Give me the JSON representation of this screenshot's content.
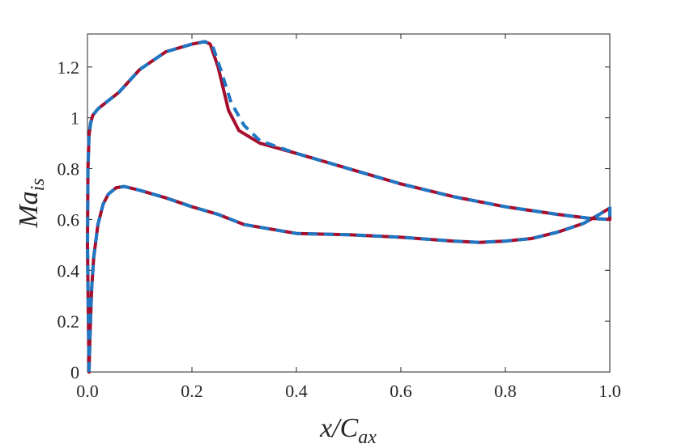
{
  "chart_data": {
    "type": "line",
    "xlabel": {
      "main": "x/C",
      "sub": "ax"
    },
    "ylabel": {
      "main": "Ma",
      "sub": "is"
    },
    "xlim": [
      0,
      1
    ],
    "ylim": [
      0,
      1.33
    ],
    "xticks": [
      0,
      0.2,
      0.4,
      0.6,
      0.8,
      1
    ],
    "xtick_labels": [
      "0.0",
      "0.2",
      "0.4",
      "0.6",
      "0.8",
      "1.0"
    ],
    "yticks": [
      0,
      0.2,
      0.4,
      0.6,
      0.8,
      1,
      1.2
    ],
    "ytick_labels": [
      "0",
      "0.2",
      "0.4",
      "0.6",
      "0.8",
      "1",
      "1.2"
    ],
    "grid": false,
    "box": true,
    "series": [
      {
        "color": "#a50f2d",
        "dash": "solid",
        "x": [
          0.003,
          0.0,
          0.001,
          0.003,
          0.006,
          0.01,
          0.02,
          0.035,
          0.06,
          0.1,
          0.15,
          0.2,
          0.225,
          0.235,
          0.25,
          0.27,
          0.29,
          0.33,
          0.4,
          0.5,
          0.6,
          0.7,
          0.8,
          0.9,
          0.96,
          1.0,
          1.0,
          1.0,
          0.98,
          0.95,
          0.9,
          0.85,
          0.8,
          0.75,
          0.7,
          0.6,
          0.5,
          0.4,
          0.3,
          0.25,
          0.2,
          0.15,
          0.1,
          0.07,
          0.055,
          0.04,
          0.03,
          0.02,
          0.012,
          0.008,
          0.005,
          0.003
        ],
        "y": [
          0.0,
          0.5,
          0.8,
          0.93,
          0.98,
          1.01,
          1.035,
          1.06,
          1.1,
          1.19,
          1.26,
          1.29,
          1.3,
          1.29,
          1.2,
          1.03,
          0.95,
          0.9,
          0.86,
          0.8,
          0.74,
          0.69,
          0.65,
          0.62,
          0.605,
          0.6,
          0.625,
          0.645,
          0.62,
          0.585,
          0.55,
          0.525,
          0.515,
          0.51,
          0.515,
          0.53,
          0.54,
          0.545,
          0.58,
          0.62,
          0.65,
          0.685,
          0.715,
          0.73,
          0.725,
          0.7,
          0.66,
          0.58,
          0.45,
          0.33,
          0.15,
          0.0
        ]
      },
      {
        "color": "#1f77c4",
        "dash": "dashed",
        "x": [
          0.003,
          0.0,
          0.001,
          0.003,
          0.006,
          0.01,
          0.02,
          0.035,
          0.06,
          0.1,
          0.15,
          0.2,
          0.225,
          0.24,
          0.255,
          0.275,
          0.3,
          0.33,
          0.4,
          0.5,
          0.6,
          0.7,
          0.8,
          0.9,
          0.96,
          1.0,
          1.0,
          1.0,
          0.98,
          0.95,
          0.9,
          0.85,
          0.8,
          0.75,
          0.7,
          0.6,
          0.5,
          0.4,
          0.3,
          0.25,
          0.2,
          0.15,
          0.1,
          0.07,
          0.055,
          0.04,
          0.03,
          0.02,
          0.012,
          0.008,
          0.005,
          0.003
        ],
        "y": [
          0.0,
          0.5,
          0.8,
          0.93,
          0.98,
          1.01,
          1.035,
          1.06,
          1.1,
          1.19,
          1.26,
          1.29,
          1.3,
          1.28,
          1.19,
          1.06,
          0.97,
          0.91,
          0.86,
          0.8,
          0.74,
          0.69,
          0.65,
          0.62,
          0.605,
          0.6,
          0.625,
          0.645,
          0.62,
          0.585,
          0.55,
          0.525,
          0.515,
          0.51,
          0.515,
          0.53,
          0.54,
          0.545,
          0.58,
          0.62,
          0.65,
          0.685,
          0.715,
          0.73,
          0.725,
          0.7,
          0.66,
          0.58,
          0.45,
          0.33,
          0.15,
          0.0
        ]
      }
    ]
  }
}
